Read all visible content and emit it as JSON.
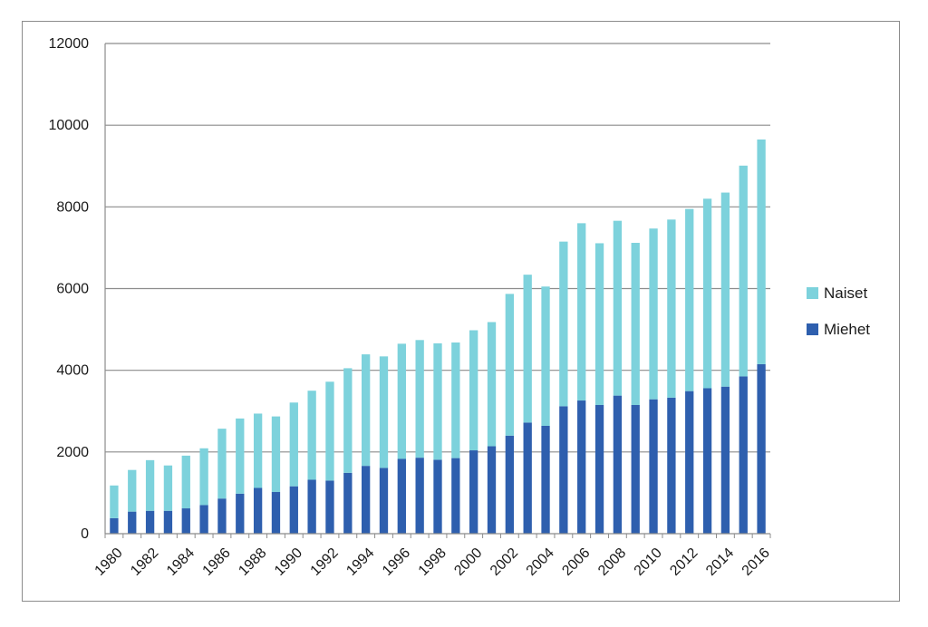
{
  "chart_data": {
    "type": "bar",
    "stacked": true,
    "title": "",
    "xlabel": "",
    "ylabel": "",
    "ylim": [
      0,
      12000
    ],
    "yticks": [
      0,
      2000,
      4000,
      6000,
      8000,
      10000,
      12000
    ],
    "grid": true,
    "legend_position": "right",
    "categories": [
      "1980",
      "1981",
      "1982",
      "1983",
      "1984",
      "1985",
      "1986",
      "1987",
      "1988",
      "1989",
      "1990",
      "1991",
      "1992",
      "1993",
      "1994",
      "1995",
      "1996",
      "1997",
      "1998",
      "1999",
      "2000",
      "2001",
      "2002",
      "2003",
      "2004",
      "2005",
      "2006",
      "2007",
      "2008",
      "2009",
      "2010",
      "2011",
      "2012",
      "2013",
      "2014",
      "2015",
      "2016"
    ],
    "xtick_labels": [
      "1980",
      "1982",
      "1984",
      "1986",
      "1988",
      "1990",
      "1992",
      "1994",
      "1996",
      "1998",
      "2000",
      "2002",
      "2004",
      "2006",
      "2008",
      "2010",
      "2012",
      "2014",
      "2016"
    ],
    "series": [
      {
        "name": "Miehet",
        "color": "#2e5fae",
        "values": [
          380,
          540,
          560,
          560,
          620,
          700,
          860,
          980,
          1120,
          1020,
          1160,
          1320,
          1300,
          1490,
          1660,
          1610,
          1830,
          1860,
          1810,
          1850,
          2040,
          2140,
          2400,
          2720,
          2640,
          3120,
          3260,
          3150,
          3380,
          3150,
          3290,
          3330,
          3490,
          3560,
          3600,
          3850,
          4150
        ]
      },
      {
        "name": "Naiset",
        "color": "#7dd2dc",
        "values": [
          800,
          1020,
          1240,
          1110,
          1290,
          1390,
          1710,
          1840,
          1820,
          1850,
          2050,
          2180,
          2420,
          2560,
          2730,
          2730,
          2820,
          2880,
          2850,
          2830,
          2940,
          3040,
          3470,
          3620,
          3410,
          4030,
          4340,
          3960,
          4280,
          3970,
          4180,
          4360,
          4460,
          4640,
          4750,
          5160,
          5500
        ]
      }
    ]
  }
}
